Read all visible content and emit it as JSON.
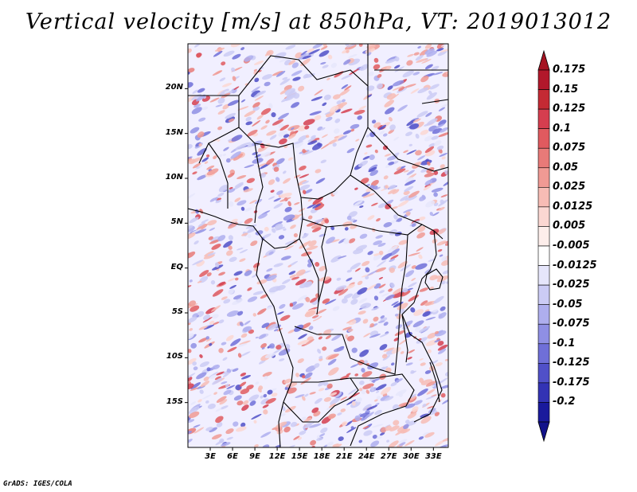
{
  "title": "Vertical velocity [m/s] at 850hPa, VT: 2019013012",
  "credit": "GrADS: IGES/COLA",
  "map": {
    "lat_labels": [
      "20N",
      "15N",
      "10N",
      "5N",
      "EQ",
      "5S",
      "10S",
      "15S"
    ],
    "lat_values": [
      20,
      15,
      10,
      5,
      0,
      -5,
      -10,
      -15
    ],
    "lon_labels": [
      "3E",
      "6E",
      "9E",
      "12E",
      "15E",
      "18E",
      "21E",
      "24E",
      "27E",
      "30E",
      "33E"
    ],
    "lon_values": [
      3,
      6,
      9,
      12,
      15,
      18,
      21,
      24,
      27,
      30,
      33
    ],
    "lat_range": [
      -20,
      25
    ],
    "lon_range": [
      0,
      35
    ]
  },
  "colorbar": {
    "labels": [
      "0.175",
      "0.15",
      "0.125",
      "0.1",
      "0.075",
      "0.05",
      "0.025",
      "0.0125",
      "0.005",
      "-0.005",
      "-0.0125",
      "-0.025",
      "-0.05",
      "-0.075",
      "-0.1",
      "-0.125",
      "-0.175",
      "-0.2"
    ],
    "colors": [
      "#b2182b",
      "#c42a34",
      "#d53e4f",
      "#e05a5f",
      "#e87a78",
      "#f09a94",
      "#f7bcb5",
      "#fbd7d2",
      "#fdeeeb",
      "#ffffff",
      "#e6e6fb",
      "#cbcbf5",
      "#aeaeee",
      "#8f8fe4",
      "#6f6fd8",
      "#5050c8",
      "#3333b4",
      "#1a1a9c"
    ],
    "top_arrow_color": "#a51422",
    "bottom_arrow_color": "#12128a"
  }
}
